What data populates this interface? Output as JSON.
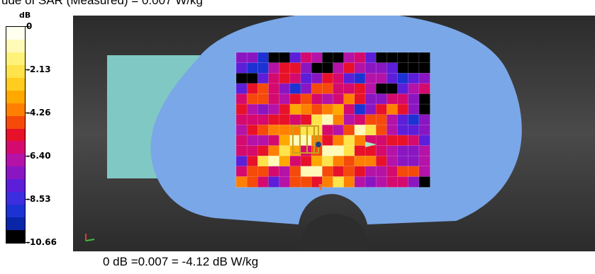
{
  "header": {
    "title": "ude of SAR (Measured) = 0.007 W/kg"
  },
  "colorbar": {
    "unit": "dB",
    "ticks": [
      "0",
      "-2.13",
      "-4.26",
      "-6.40",
      "-8.53",
      "-10.66"
    ],
    "colors": [
      "#fffff0",
      "#fffab8",
      "#fff27a",
      "#ffe34a",
      "#ffcc1f",
      "#ffa800",
      "#ff8000",
      "#f54a0a",
      "#e8112a",
      "#d40a6e",
      "#b512a8",
      "#8a16c2",
      "#5c1ed8",
      "#3c2dde",
      "#1c32d2",
      "#0a26a8",
      "#00167a"
    ]
  },
  "viewer": {
    "background_color": "#3a3a3a",
    "phantom_color": "#7aa7e8",
    "grid_peak_db": 0,
    "min_db": -10.66
  },
  "footer": {
    "text": "0 dB =0.007 = -4.12 dB W/kg"
  }
}
